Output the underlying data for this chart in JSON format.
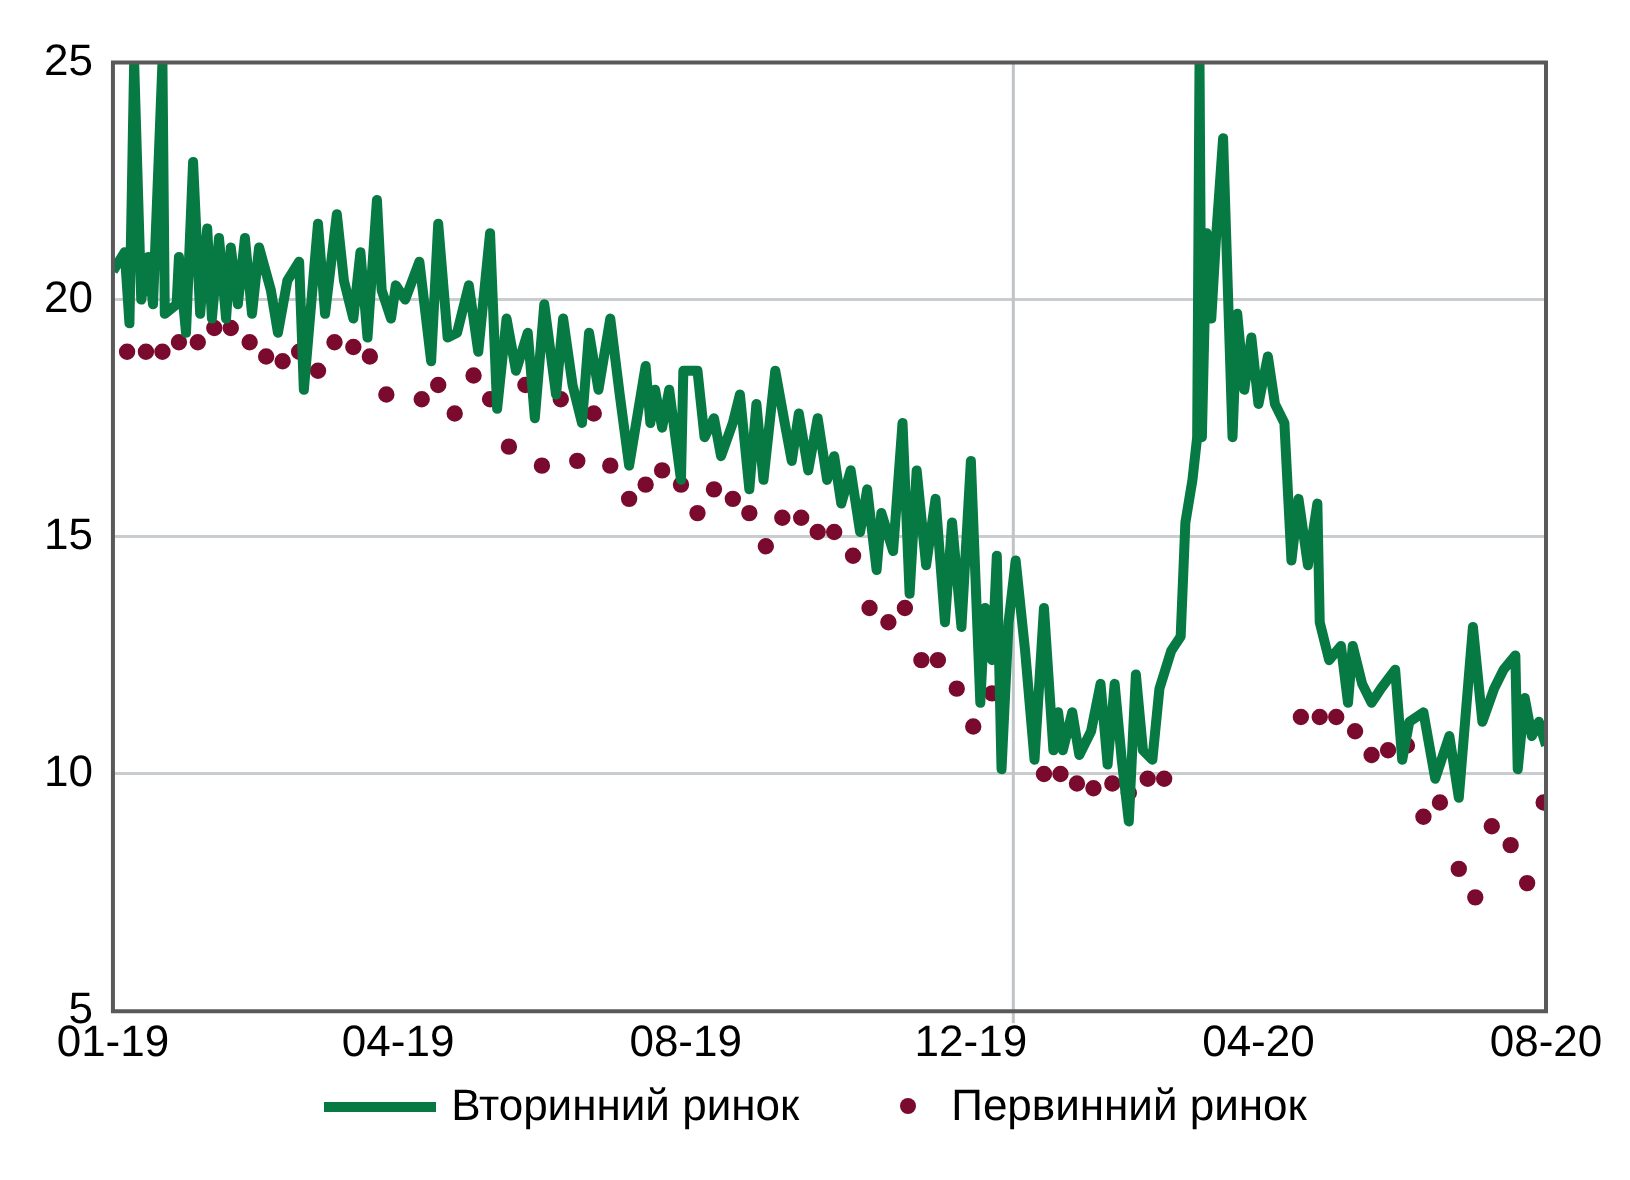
{
  "chart_data": {
    "type": "line",
    "xlim": [
      "2019-01-01",
      "2020-08-31"
    ],
    "xticks": [
      {
        "value": "2019-01-01",
        "label": "01-19"
      },
      {
        "value": "2019-05-02",
        "label": "04-19"
      },
      {
        "value": "2019-09-01",
        "label": "08-19"
      },
      {
        "value": "2019-12-31",
        "label": "12-19"
      },
      {
        "value": "2020-05-01",
        "label": "04-20"
      },
      {
        "value": "2020-08-31",
        "label": "08-20"
      }
    ],
    "ylim": [
      5,
      25
    ],
    "yticks": [
      5,
      10,
      15,
      20,
      25
    ],
    "grid": "y",
    "legend": "bottom",
    "ref_lines": [
      {
        "axis": "x",
        "value": "2020-01-18",
        "color": "#bfc4c7"
      }
    ],
    "series": [
      {
        "name": "Вторинний ринок",
        "color": "#077a43",
        "marker": "none",
        "x": [
          "2019-01-01",
          "2019-01-06",
          "2019-01-08",
          "2019-01-10",
          "2019-01-13",
          "2019-01-16",
          "2019-01-18",
          "2019-01-22",
          "2019-01-23",
          "2019-01-28",
          "2019-01-29",
          "2019-02-01",
          "2019-02-04",
          "2019-02-07",
          "2019-02-10",
          "2019-02-12",
          "2019-02-15",
          "2019-02-18",
          "2019-02-20",
          "2019-02-23",
          "2019-02-26",
          "2019-03-01",
          "2019-03-04",
          "2019-03-09",
          "2019-03-12",
          "2019-03-16",
          "2019-03-21",
          "2019-03-23",
          "2019-03-29",
          "2019-04-01",
          "2019-04-06",
          "2019-04-09",
          "2019-04-13",
          "2019-04-16",
          "2019-04-19",
          "2019-04-23",
          "2019-04-25",
          "2019-04-29",
          "2019-05-01",
          "2019-05-05",
          "2019-05-11",
          "2019-05-16",
          "2019-05-19",
          "2019-05-23",
          "2019-05-27",
          "2019-06-01",
          "2019-06-05",
          "2019-06-10",
          "2019-06-13",
          "2019-06-17",
          "2019-06-21",
          "2019-06-26",
          "2019-06-29",
          "2019-07-03",
          "2019-07-08",
          "2019-07-11",
          "2019-07-15",
          "2019-07-19",
          "2019-07-22",
          "2019-07-26",
          "2019-07-31",
          "2019-08-04",
          "2019-08-08",
          "2019-08-15",
          "2019-08-17",
          "2019-08-19",
          "2019-08-22",
          "2019-08-25",
          "2019-08-30",
          "2019-08-31",
          "2019-09-06",
          "2019-09-09",
          "2019-09-13",
          "2019-09-16",
          "2019-09-21",
          "2019-09-24",
          "2019-09-28",
          "2019-10-01",
          "2019-10-04",
          "2019-10-09",
          "2019-10-13",
          "2019-10-16",
          "2019-10-19",
          "2019-10-23",
          "2019-10-27",
          "2019-10-31",
          "2019-11-03",
          "2019-11-06",
          "2019-11-10",
          "2019-11-14",
          "2019-11-17",
          "2019-11-21",
          "2019-11-23",
          "2019-11-28",
          "2019-12-02",
          "2019-12-05",
          "2019-12-08",
          "2019-12-12",
          "2019-12-16",
          "2019-12-20",
          "2019-12-23",
          "2019-12-27",
          "2019-12-31",
          "2020-01-04",
          "2020-01-06",
          "2020-01-09",
          "2020-01-11",
          "2020-01-13",
          "2020-01-16",
          "2020-01-19",
          "2020-01-23",
          "2020-01-27",
          "2020-01-31",
          "2020-02-04",
          "2020-02-06",
          "2020-02-08",
          "2020-02-12",
          "2020-02-15",
          "2020-02-20",
          "2020-02-24",
          "2020-02-27",
          "2020-03-01",
          "2020-03-04",
          "2020-03-07",
          "2020-03-10",
          "2020-03-13",
          "2020-03-17",
          "2020-03-20",
          "2020-03-25",
          "2020-03-29",
          "2020-03-31",
          "2020-04-03",
          "2020-04-05",
          "2020-04-06",
          "2020-04-07",
          "2020-04-09",
          "2020-04-11",
          "2020-04-13",
          "2020-04-16",
          "2020-04-20",
          "2020-04-22",
          "2020-04-25",
          "2020-04-28",
          "2020-05-01",
          "2020-05-05",
          "2020-05-08",
          "2020-05-12",
          "2020-05-15",
          "2020-05-18",
          "2020-05-22",
          "2020-05-26",
          "2020-05-27",
          "2020-05-31",
          "2020-06-05",
          "2020-06-08",
          "2020-06-10",
          "2020-06-14",
          "2020-06-18",
          "2020-06-22",
          "2020-06-28",
          "2020-07-01",
          "2020-07-04",
          "2020-07-10",
          "2020-07-15",
          "2020-07-21",
          "2020-07-25",
          "2020-07-31",
          "2020-08-04",
          "2020-08-09",
          "2020-08-13",
          "2020-08-18",
          "2020-08-19",
          "2020-08-22",
          "2020-08-25",
          "2020-08-28",
          "2020-08-31"
        ],
        "values": [
          20.6,
          21.0,
          19.5,
          25,
          20.0,
          20.9,
          19.9,
          25,
          19.7,
          19.9,
          20.9,
          19.3,
          22.9,
          19.7,
          21.5,
          19.6,
          21.3,
          19.6,
          21.1,
          19.9,
          21.3,
          19.7,
          21.1,
          20.2,
          19.3,
          20.4,
          20.8,
          18.1,
          21.6,
          19.7,
          21.8,
          20.4,
          19.6,
          21.0,
          19.2,
          22.1,
          20.2,
          19.6,
          20.3,
          20.0,
          20.8,
          18.7,
          21.6,
          19.2,
          19.3,
          20.3,
          18.9,
          21.4,
          17.7,
          19.6,
          18.5,
          19.3,
          17.5,
          19.9,
          18.0,
          19.6,
          18.2,
          17.4,
          19.3,
          18.1,
          19.6,
          18.0,
          16.5,
          18.6,
          17.4,
          18.1,
          17.3,
          18.1,
          16.2,
          18.5,
          18.5,
          17.1,
          17.5,
          16.7,
          17.4,
          18.0,
          16.0,
          17.8,
          16.2,
          18.5,
          17.4,
          16.6,
          17.6,
          16.4,
          17.5,
          16.2,
          16.7,
          15.7,
          16.4,
          15.1,
          16.0,
          14.3,
          15.5,
          14.7,
          17.4,
          13.8,
          16.4,
          14.4,
          15.8,
          13.2,
          15.3,
          13.1,
          16.6,
          11.5,
          13.5,
          12.4,
          14.6,
          10.1,
          13.2,
          14.5,
          12.6,
          10.3,
          13.5,
          10.5,
          11.3,
          10.5,
          11.3,
          10.4,
          10.9,
          11.9,
          10.2,
          11.9,
          10.3,
          9.0,
          12.1,
          10.5,
          10.3,
          11.8,
          12.6,
          12.9,
          15.3,
          16.2,
          17.1,
          25,
          17.1,
          21.4,
          19.6,
          21.3,
          23.4,
          17.1,
          19.7,
          18.1,
          19.2,
          17.8,
          18.8,
          17.8,
          17.4,
          14.5,
          15.8,
          14.4,
          15.7,
          13.2,
          12.4,
          12.7,
          11.5,
          12.7,
          11.9,
          11.5,
          11.8,
          12.2,
          10.3,
          11.1,
          11.3,
          9.9,
          10.8,
          9.5,
          13.1,
          11.1,
          11.8,
          12.2,
          12.5,
          10.1,
          11.6,
          10.8,
          11.1,
          10.6
        ]
      },
      {
        "name": "Первинний ринок",
        "type": "scatter",
        "color": "#7a0a2e",
        "marker": "circle",
        "x": [
          "2019-01-07",
          "2019-01-15",
          "2019-01-22",
          "2019-01-29",
          "2019-02-06",
          "2019-02-13",
          "2019-02-20",
          "2019-02-28",
          "2019-03-07",
          "2019-03-14",
          "2019-03-21",
          "2019-03-29",
          "2019-04-05",
          "2019-04-13",
          "2019-04-20",
          "2019-04-27",
          "2019-05-12",
          "2019-05-19",
          "2019-05-26",
          "2019-06-03",
          "2019-06-10",
          "2019-06-18",
          "2019-06-25",
          "2019-07-02",
          "2019-07-10",
          "2019-07-17",
          "2019-07-24",
          "2019-07-31",
          "2019-08-08",
          "2019-08-15",
          "2019-08-22",
          "2019-08-30",
          "2019-09-06",
          "2019-09-13",
          "2019-09-21",
          "2019-09-28",
          "2019-10-05",
          "2019-10-12",
          "2019-10-20",
          "2019-10-27",
          "2019-11-03",
          "2019-11-11",
          "2019-11-18",
          "2019-11-26",
          "2019-12-03",
          "2019-12-10",
          "2019-12-17",
          "2019-12-25",
          "2020-01-01",
          "2020-01-09",
          "2020-01-31",
          "2020-02-07",
          "2020-02-14",
          "2020-02-21",
          "2020-02-29",
          "2020-03-07",
          "2020-03-15",
          "2020-03-22",
          "2020-05-19",
          "2020-05-27",
          "2020-06-03",
          "2020-06-11",
          "2020-06-18",
          "2020-06-25",
          "2020-07-03",
          "2020-07-10",
          "2020-07-17",
          "2020-07-25",
          "2020-08-01",
          "2020-08-08",
          "2020-08-16",
          "2020-08-23",
          "2020-08-30"
        ],
        "values": [
          18.9,
          18.9,
          18.9,
          19.1,
          19.1,
          19.4,
          19.4,
          19.1,
          18.8,
          18.7,
          18.9,
          18.5,
          19.1,
          19.0,
          18.8,
          18.0,
          17.9,
          18.2,
          17.6,
          18.4,
          17.9,
          16.9,
          18.2,
          16.5,
          17.9,
          16.6,
          17.6,
          16.5,
          15.8,
          16.1,
          16.4,
          16.1,
          15.5,
          16.0,
          15.8,
          15.5,
          14.8,
          15.4,
          15.4,
          15.1,
          15.1,
          14.6,
          13.5,
          13.2,
          13.5,
          12.4,
          12.4,
          11.8,
          11.0,
          11.7,
          10.0,
          10.0,
          9.8,
          9.7,
          9.8,
          9.6,
          9.9,
          9.9,
          11.2,
          11.2,
          11.2,
          10.9,
          10.4,
          10.5,
          10.6,
          9.1,
          9.4,
          8.0,
          7.4,
          8.9,
          8.5,
          7.7,
          9.4
        ]
      }
    ]
  }
}
